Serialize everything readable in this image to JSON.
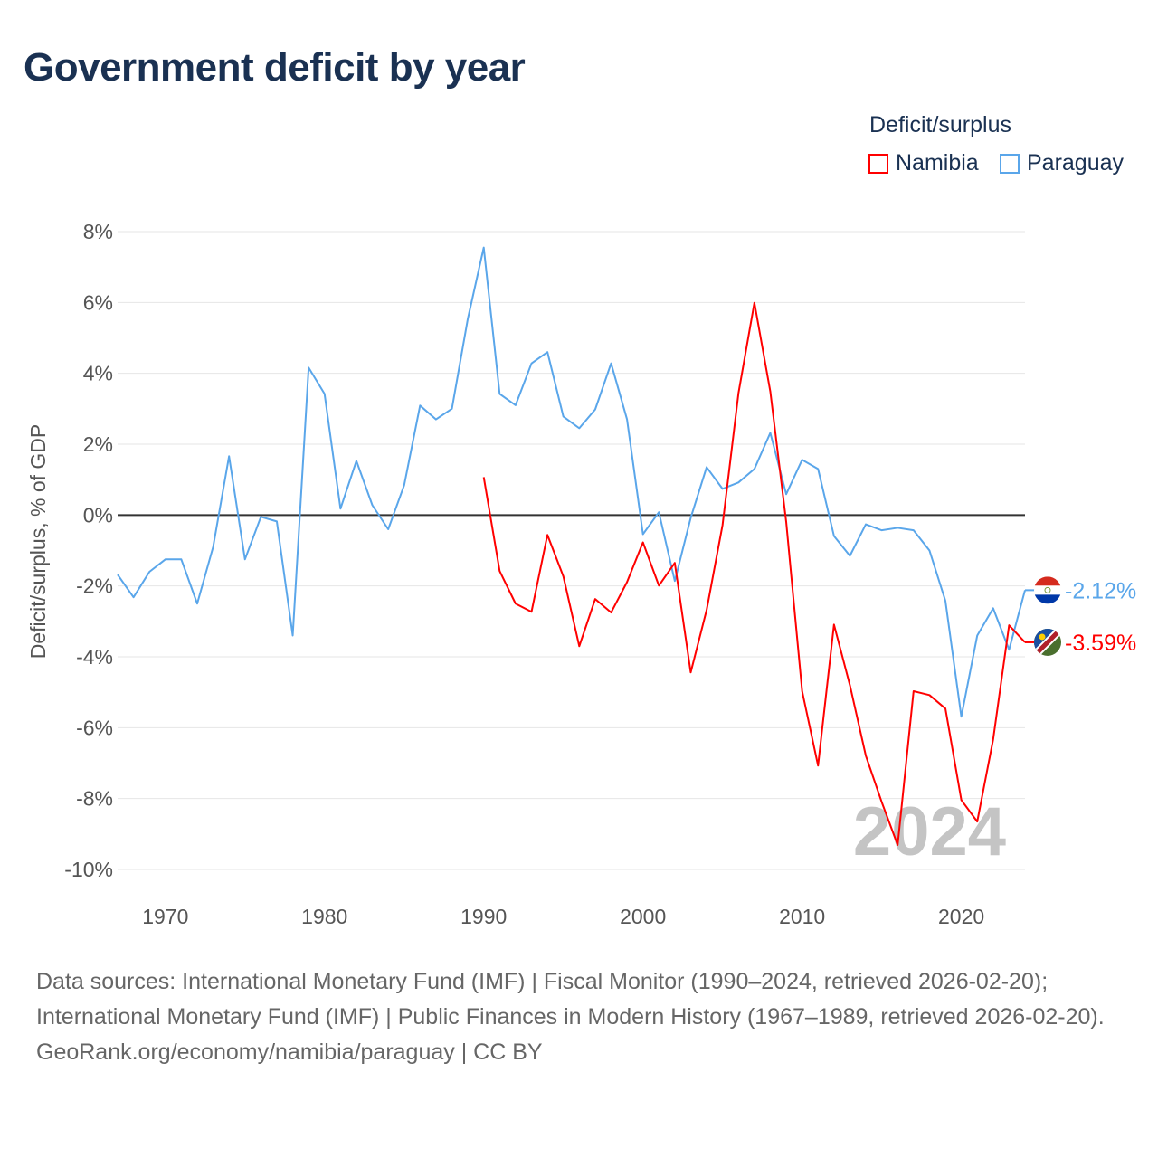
{
  "title": "Government deficit by year",
  "legend": {
    "title": "Deficit/surplus",
    "items": [
      "Namibia",
      "Paraguay"
    ]
  },
  "colors": {
    "Namibia": "#ff0000",
    "Paraguay": "#5aa6ea"
  },
  "year_watermark": "2024",
  "end_labels": {
    "Paraguay": "-2.12%",
    "Namibia": "-3.59%"
  },
  "source": {
    "line1": "Data sources: International Monetary Fund (IMF) | Fiscal Monitor (1990–2024, retrieved 2026-02-20); International Monetary Fund (IMF) | Public Finances in Modern History (1967–1989, retrieved 2026-02-20).",
    "line2": "GeoRank.org/economy/namibia/paraguay | CC BY"
  },
  "chart_data": {
    "type": "line",
    "title": "Government deficit by year",
    "xlabel": "",
    "ylabel": "Deficit/surplus, % of GDP",
    "xlim": [
      1967,
      2024
    ],
    "ylim": [
      -10,
      8
    ],
    "xticks": [
      1970,
      1980,
      1990,
      2000,
      2010,
      2020
    ],
    "yticks": [
      8,
      6,
      4,
      2,
      0,
      -2,
      -4,
      -6,
      -8,
      -10
    ],
    "ytick_labels": [
      "8%",
      "6%",
      "4%",
      "2%",
      "0%",
      "-2%",
      "-4%",
      "-6%",
      "-8%",
      "-10%"
    ],
    "grid": true,
    "legend_position": "top-right",
    "series": [
      {
        "name": "Paraguay",
        "start": 1967,
        "values": [
          -1.68,
          -2.32,
          -1.6,
          -1.25,
          -1.25,
          -2.5,
          -0.9,
          1.66,
          -1.25,
          -0.05,
          -0.18,
          -3.4,
          4.16,
          3.42,
          0.18,
          1.53,
          0.28,
          -0.4,
          0.84,
          3.09,
          2.7,
          3.0,
          5.54,
          7.55,
          3.42,
          3.1,
          4.28,
          4.6,
          2.78,
          2.45,
          2.98,
          4.28,
          2.7,
          -0.54,
          0.08,
          -1.86,
          -0.08,
          1.35,
          0.74,
          0.92,
          1.3,
          2.32,
          0.59,
          1.56,
          1.3,
          -0.59,
          -1.15,
          -0.26,
          -0.43,
          -0.36,
          -0.43,
          -1.0,
          -2.42,
          -5.69,
          -3.4,
          -2.63,
          -3.8,
          -2.12
        ]
      },
      {
        "name": "Namibia",
        "start": 1990,
        "values": [
          1.07,
          -1.58,
          -2.5,
          -2.73,
          -0.56,
          -1.73,
          -3.7,
          -2.37,
          -2.75,
          -1.89,
          -0.77,
          -1.99,
          -1.35,
          -4.44,
          -2.68,
          -0.28,
          3.44,
          5.99,
          3.49,
          -0.2,
          -4.97,
          -7.07,
          -3.09,
          -4.8,
          -6.79,
          -8.1,
          -9.31,
          -4.97,
          -5.08,
          -5.46,
          -8.04,
          -8.65,
          -6.33,
          -3.11,
          -3.59
        ]
      }
    ]
  }
}
